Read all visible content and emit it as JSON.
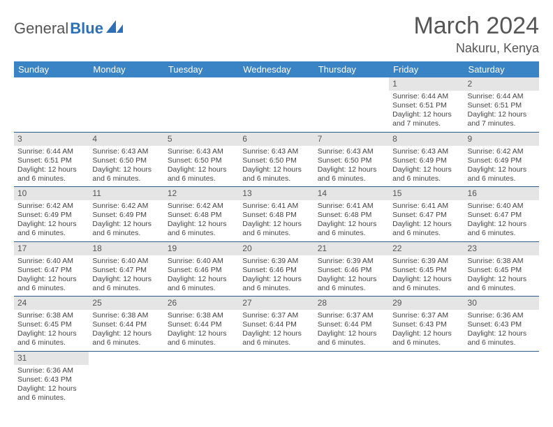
{
  "brand": {
    "name1": "General",
    "name2": "Blue"
  },
  "title": {
    "month": "March 2024",
    "location": "Nakuru, Kenya"
  },
  "colors": {
    "headerBg": "#3a83c4",
    "rowDivider": "#2c5a8a",
    "dayNumBg": "#e5e5e5",
    "logoBlue": "#2c6fb5"
  },
  "weekdays": [
    "Sunday",
    "Monday",
    "Tuesday",
    "Wednesday",
    "Thursday",
    "Friday",
    "Saturday"
  ],
  "weeks": [
    [
      null,
      null,
      null,
      null,
      null,
      {
        "n": "1",
        "sr": "6:44 AM",
        "ss": "6:51 PM",
        "dl": "12 hours and 7 minutes."
      },
      {
        "n": "2",
        "sr": "6:44 AM",
        "ss": "6:51 PM",
        "dl": "12 hours and 7 minutes."
      }
    ],
    [
      {
        "n": "3",
        "sr": "6:44 AM",
        "ss": "6:51 PM",
        "dl": "12 hours and 6 minutes."
      },
      {
        "n": "4",
        "sr": "6:43 AM",
        "ss": "6:50 PM",
        "dl": "12 hours and 6 minutes."
      },
      {
        "n": "5",
        "sr": "6:43 AM",
        "ss": "6:50 PM",
        "dl": "12 hours and 6 minutes."
      },
      {
        "n": "6",
        "sr": "6:43 AM",
        "ss": "6:50 PM",
        "dl": "12 hours and 6 minutes."
      },
      {
        "n": "7",
        "sr": "6:43 AM",
        "ss": "6:50 PM",
        "dl": "12 hours and 6 minutes."
      },
      {
        "n": "8",
        "sr": "6:43 AM",
        "ss": "6:49 PM",
        "dl": "12 hours and 6 minutes."
      },
      {
        "n": "9",
        "sr": "6:42 AM",
        "ss": "6:49 PM",
        "dl": "12 hours and 6 minutes."
      }
    ],
    [
      {
        "n": "10",
        "sr": "6:42 AM",
        "ss": "6:49 PM",
        "dl": "12 hours and 6 minutes."
      },
      {
        "n": "11",
        "sr": "6:42 AM",
        "ss": "6:49 PM",
        "dl": "12 hours and 6 minutes."
      },
      {
        "n": "12",
        "sr": "6:42 AM",
        "ss": "6:48 PM",
        "dl": "12 hours and 6 minutes."
      },
      {
        "n": "13",
        "sr": "6:41 AM",
        "ss": "6:48 PM",
        "dl": "12 hours and 6 minutes."
      },
      {
        "n": "14",
        "sr": "6:41 AM",
        "ss": "6:48 PM",
        "dl": "12 hours and 6 minutes."
      },
      {
        "n": "15",
        "sr": "6:41 AM",
        "ss": "6:47 PM",
        "dl": "12 hours and 6 minutes."
      },
      {
        "n": "16",
        "sr": "6:40 AM",
        "ss": "6:47 PM",
        "dl": "12 hours and 6 minutes."
      }
    ],
    [
      {
        "n": "17",
        "sr": "6:40 AM",
        "ss": "6:47 PM",
        "dl": "12 hours and 6 minutes."
      },
      {
        "n": "18",
        "sr": "6:40 AM",
        "ss": "6:47 PM",
        "dl": "12 hours and 6 minutes."
      },
      {
        "n": "19",
        "sr": "6:40 AM",
        "ss": "6:46 PM",
        "dl": "12 hours and 6 minutes."
      },
      {
        "n": "20",
        "sr": "6:39 AM",
        "ss": "6:46 PM",
        "dl": "12 hours and 6 minutes."
      },
      {
        "n": "21",
        "sr": "6:39 AM",
        "ss": "6:46 PM",
        "dl": "12 hours and 6 minutes."
      },
      {
        "n": "22",
        "sr": "6:39 AM",
        "ss": "6:45 PM",
        "dl": "12 hours and 6 minutes."
      },
      {
        "n": "23",
        "sr": "6:38 AM",
        "ss": "6:45 PM",
        "dl": "12 hours and 6 minutes."
      }
    ],
    [
      {
        "n": "24",
        "sr": "6:38 AM",
        "ss": "6:45 PM",
        "dl": "12 hours and 6 minutes."
      },
      {
        "n": "25",
        "sr": "6:38 AM",
        "ss": "6:44 PM",
        "dl": "12 hours and 6 minutes."
      },
      {
        "n": "26",
        "sr": "6:38 AM",
        "ss": "6:44 PM",
        "dl": "12 hours and 6 minutes."
      },
      {
        "n": "27",
        "sr": "6:37 AM",
        "ss": "6:44 PM",
        "dl": "12 hours and 6 minutes."
      },
      {
        "n": "28",
        "sr": "6:37 AM",
        "ss": "6:44 PM",
        "dl": "12 hours and 6 minutes."
      },
      {
        "n": "29",
        "sr": "6:37 AM",
        "ss": "6:43 PM",
        "dl": "12 hours and 6 minutes."
      },
      {
        "n": "30",
        "sr": "6:36 AM",
        "ss": "6:43 PM",
        "dl": "12 hours and 6 minutes."
      }
    ],
    [
      {
        "n": "31",
        "sr": "6:36 AM",
        "ss": "6:43 PM",
        "dl": "12 hours and 6 minutes."
      },
      null,
      null,
      null,
      null,
      null,
      null
    ]
  ],
  "labels": {
    "sunrise": "Sunrise:",
    "sunset": "Sunset:",
    "daylight": "Daylight:"
  }
}
